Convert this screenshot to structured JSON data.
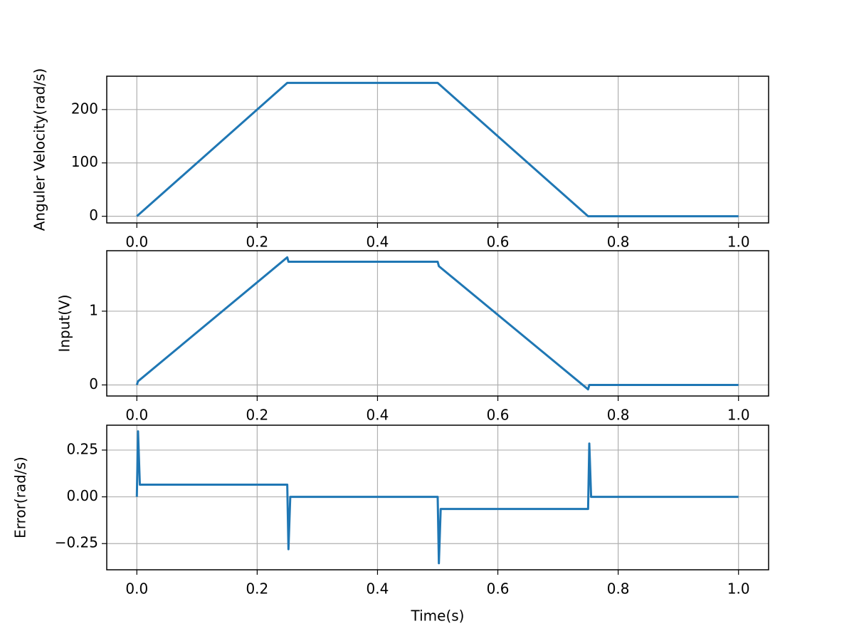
{
  "chart_data": [
    {
      "type": "line",
      "ylabel": "Anguler Velocity(rad/s)",
      "x": [
        0,
        0.25,
        0.5,
        0.75,
        1.0
      ],
      "values": [
        0,
        250,
        250,
        0,
        0
      ],
      "color": "#1f77b4",
      "xlim": [
        -0.05,
        1.05
      ],
      "ylim": [
        -12.5,
        262.5
      ],
      "xticks": [
        {
          "value": 0,
          "label": "0.0"
        },
        0.2,
        0.4,
        0.6,
        0.8,
        {
          "value": 1,
          "label": "1.0"
        }
      ],
      "yticks": [
        0,
        100,
        200
      ],
      "grid": true
    },
    {
      "type": "line",
      "ylabel": "Input(V)",
      "x": [
        0,
        0.002,
        0.25,
        0.252,
        0.5,
        0.502,
        0.75,
        0.752,
        1.0
      ],
      "values": [
        0,
        0.05,
        1.73,
        1.67,
        1.67,
        1.61,
        -0.06,
        0,
        0
      ],
      "color": "#1f77b4",
      "xlim": [
        -0.05,
        1.05
      ],
      "ylim": [
        -0.15,
        1.82
      ],
      "xticks": [
        {
          "value": 0,
          "label": "0.0"
        },
        0.2,
        0.4,
        0.6,
        0.8,
        {
          "value": 1,
          "label": "1.0"
        }
      ],
      "yticks": [
        0,
        1
      ],
      "grid": true
    },
    {
      "type": "line",
      "ylabel": "Error(rad/s)",
      "xlabel": "Time(s)",
      "x": [
        0,
        0.002,
        0.005,
        0.25,
        0.252,
        0.255,
        0.5,
        0.502,
        0.505,
        0.75,
        0.752,
        0.755,
        1.0
      ],
      "values": [
        0,
        0.35,
        0.065,
        0.065,
        -0.28,
        0,
        0,
        -0.355,
        -0.065,
        -0.065,
        0.285,
        0,
        0
      ],
      "color": "#1f77b4",
      "xlim": [
        -0.05,
        1.05
      ],
      "ylim": [
        -0.39,
        0.383
      ],
      "xticks": [
        {
          "value": 0,
          "label": "0.0"
        },
        0.2,
        0.4,
        0.6,
        0.8,
        {
          "value": 1,
          "label": "1.0"
        }
      ],
      "yticks": [
        {
          "value": -0.25,
          "label": "−0.25"
        },
        {
          "value": 0,
          "label": "0.00"
        },
        0.25
      ],
      "grid": true
    }
  ]
}
